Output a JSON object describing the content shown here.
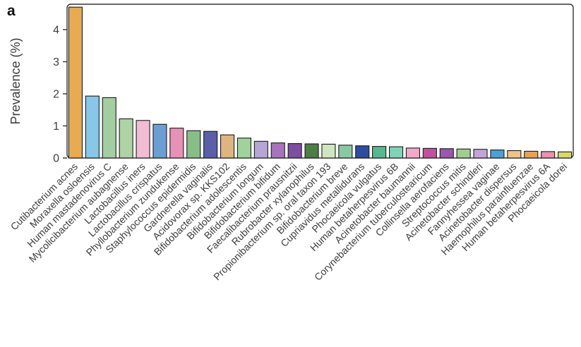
{
  "panel_label": "a",
  "colors": {
    "background": "#ffffff",
    "axis": "#333333",
    "text": "#3d3d3d"
  },
  "chart_data": {
    "type": "bar",
    "title": "",
    "xlabel": "",
    "ylabel": "Prevalence (%)",
    "ylim": [
      0,
      4.9
    ],
    "yticks": [
      0,
      1,
      2,
      3,
      4
    ],
    "grid": false,
    "legend": "none",
    "bar_stroke": "#1a1a1a",
    "categories": [
      "Cutibacterium acnes",
      "Moraxella osloensis",
      "Human mastadenovirus C",
      "Mycolicibacterium aubagnense",
      "Lactobacillus iners",
      "Lactobacillus crispatus",
      "Phyllobacterium zundukense",
      "Staphylococcus epidermidis",
      "Gardnerella vaginalis",
      "Acidovorax sp. KKS102",
      "Bifidobacterium adolescentis",
      "Bifidobacterium longum",
      "Bifidobacterium bifidum",
      "Faecalibacterium prausnitzii",
      "Rubrobacter xylanophilus",
      "Propionibacterium sp. oral taxon 193",
      "Bifidobacterium breve",
      "Cupriavidus metallidurans",
      "Phocaeicola vulgatus",
      "Human betaherpesvirus 6B",
      "Acinetobacter baumannii",
      "Corynebacterium tuberculostearicum",
      "Collinsella aerofaciens",
      "Streptococcus mitis",
      "Acinetobacter schindleri",
      "Fannyhessea vaginae",
      "Acinetobacter dispersus",
      "Haemophilus parainfluenzae",
      "Human betaherpesvirus 6A",
      "Phocaeicola dorei"
    ],
    "values": [
      4.7,
      1.93,
      1.88,
      1.22,
      1.17,
      1.05,
      0.93,
      0.85,
      0.83,
      0.72,
      0.62,
      0.52,
      0.47,
      0.45,
      0.44,
      0.43,
      0.4,
      0.38,
      0.36,
      0.35,
      0.31,
      0.3,
      0.29,
      0.28,
      0.27,
      0.25,
      0.23,
      0.21,
      0.2,
      0.19
    ],
    "bar_colors": [
      "#e8ab4f",
      "#87c7e8",
      "#a3cfa0",
      "#aed3a4",
      "#f2bcd4",
      "#6b9fd4",
      "#e891b6",
      "#86bf86",
      "#5a5fa8",
      "#dfb57f",
      "#9fd39b",
      "#b5a6d6",
      "#a873bd",
      "#7d4fa0",
      "#4e7d48",
      "#cfe6c0",
      "#88c9a1",
      "#2f4d9e",
      "#56b98e",
      "#7fd4b8",
      "#f2a9c9",
      "#c2509e",
      "#9a57ad",
      "#9fcf8f",
      "#c3a4d8",
      "#4d9fd6",
      "#f0c488",
      "#e8a254",
      "#ef8fae",
      "#d9d96a"
    ]
  }
}
